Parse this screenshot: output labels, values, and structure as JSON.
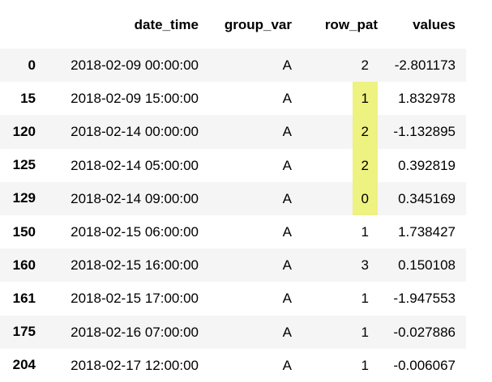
{
  "table": {
    "columns": [
      "date_time",
      "group_var",
      "row_pat",
      "values"
    ],
    "index": [
      "0",
      "15",
      "120",
      "125",
      "129",
      "150",
      "160",
      "161",
      "175",
      "204"
    ],
    "rows": [
      [
        "2018-02-09 00:00:00",
        "A",
        "2",
        "-2.801173"
      ],
      [
        "2018-02-09 15:00:00",
        "A",
        "1",
        "1.832978"
      ],
      [
        "2018-02-14 00:00:00",
        "A",
        "2",
        "-1.132895"
      ],
      [
        "2018-02-14 05:00:00",
        "A",
        "2",
        "0.392819"
      ],
      [
        "2018-02-14 09:00:00",
        "A",
        "0",
        "0.345169"
      ],
      [
        "2018-02-15 06:00:00",
        "A",
        "1",
        "1.738427"
      ],
      [
        "2018-02-15 16:00:00",
        "A",
        "3",
        "0.150108"
      ],
      [
        "2018-02-15 17:00:00",
        "A",
        "1",
        "-1.947553"
      ],
      [
        "2018-02-16 07:00:00",
        "A",
        "1",
        "-0.027886"
      ],
      [
        "2018-02-17 12:00:00",
        "A",
        "1",
        "-0.006067"
      ]
    ],
    "highlight": {
      "column": 2,
      "rows": [
        1,
        2,
        3,
        4
      ],
      "color": "#eef280"
    }
  }
}
